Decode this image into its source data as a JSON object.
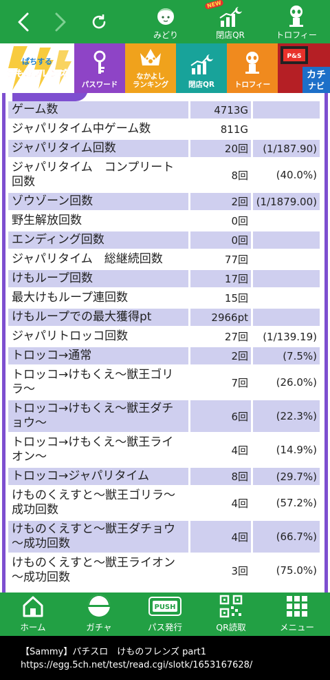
{
  "topbar": {
    "items": [
      {
        "label": "みどり",
        "icon": "character-icon"
      },
      {
        "label": "閉店QR",
        "icon": "chart-moon-icon",
        "badge": "NEW"
      },
      {
        "label": "トロフィー",
        "icon": "trophy-character-icon"
      }
    ]
  },
  "menu": {
    "logo_text": "ぱちする けものフレンズ",
    "items": [
      {
        "label": "パスワード",
        "color": "#8e44c6",
        "icon": "key-icon"
      },
      {
        "label": "なかよし\nランキング",
        "color": "#f0a21c",
        "icon": "crown-paw-icon"
      },
      {
        "label": "閉店QR",
        "color": "#18a39a",
        "icon": "chart-moon-icon"
      },
      {
        "label": "トロフィー",
        "color": "#f08a1e",
        "icon": "trophy-character-icon"
      }
    ],
    "kachi_label": "カチナビ"
  },
  "rows": [
    {
      "label": "ゲーム数",
      "value": "4713G",
      "extra": "",
      "shade": true
    },
    {
      "label": "ジャパリタイム中ゲーム数",
      "value": "811G",
      "extra": "",
      "shade": false
    },
    {
      "label": "ジャパリタイム回数",
      "value": "20回",
      "extra": "(1/187.90)",
      "shade": true
    },
    {
      "label": "ジャパリタイム　コンプリート回数",
      "value": "8回",
      "extra": "(40.0%)",
      "shade": false
    },
    {
      "label": "ゾウゾーン回数",
      "value": "2回",
      "extra": "(1/1879.00)",
      "shade": true
    },
    {
      "label": "野生解放回数",
      "value": "0回",
      "extra": "",
      "shade": false
    },
    {
      "label": "エンディング回数",
      "value": "0回",
      "extra": "",
      "shade": true
    },
    {
      "label": "ジャパリタイム　総継続回数",
      "value": "77回",
      "extra": "",
      "shade": false
    },
    {
      "label": "けもループ回数",
      "value": "17回",
      "extra": "",
      "shade": true
    },
    {
      "label": "最大けもループ連回数",
      "value": "15回",
      "extra": "",
      "shade": false
    },
    {
      "label": "けもループでの最大獲得pt",
      "value": "2966pt",
      "extra": "",
      "shade": true
    },
    {
      "label": "ジャパリトロッコ回数",
      "value": "27回",
      "extra": "(1/139.19)",
      "shade": false
    },
    {
      "label": "トロッコ→通常",
      "value": "2回",
      "extra": "(7.5%)",
      "shade": true
    },
    {
      "label": "トロッコ→けもくえ～獣王ゴリラ～",
      "value": "7回",
      "extra": "(26.0%)",
      "shade": false
    },
    {
      "label": "トロッコ→けもくえ～獣王ダチョウ～",
      "value": "6回",
      "extra": "(22.3%)",
      "shade": true
    },
    {
      "label": "トロッコ→けもくえ～獣王ライオン～",
      "value": "4回",
      "extra": "(14.9%)",
      "shade": false
    },
    {
      "label": "トロッコ→ジャパリタイム",
      "value": "8回",
      "extra": "(29.7%)",
      "shade": true
    },
    {
      "label": "けものくえすと～獣王ゴリラ～成功回数",
      "value": "4回",
      "extra": "(57.2%)",
      "shade": false
    },
    {
      "label": "けものくえすと～獣王ダチョウ～成功回数",
      "value": "4回",
      "extra": "(66.7%)",
      "shade": true
    },
    {
      "label": "けものくえすと～獣王ライオン～成功回数",
      "value": "3回",
      "extra": "(75.0%)",
      "shade": false
    }
  ],
  "bottomnav": [
    {
      "label": "ホーム",
      "icon": "home-icon"
    },
    {
      "label": "ガチャ",
      "icon": "gacha-icon"
    },
    {
      "label": "パス発行",
      "icon": "push-button-icon"
    },
    {
      "label": "QR読取",
      "icon": "qr-code-icon"
    },
    {
      "label": "メニュー",
      "icon": "menu-grid-icon"
    }
  ],
  "caption": {
    "line1": "【Sammy】パチスロ　けものフレンズ part1",
    "line2": "https://egg.5ch.net/test/read.cgi/slotk/1653167628/"
  },
  "colors": {
    "green": "#22a044",
    "purple": "#7e4fd0",
    "row_shade": "#cfcfef"
  }
}
